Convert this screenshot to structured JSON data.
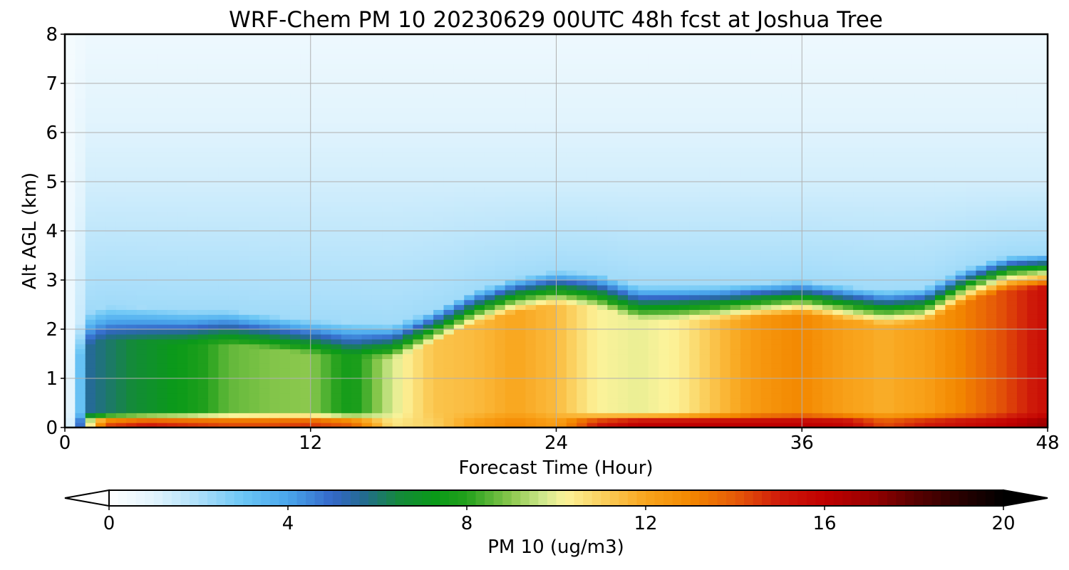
{
  "chart_data": {
    "type": "heatmap",
    "title": "WRF-Chem PM 10  20230629 00UTC 48h fcst at Joshua Tree",
    "xlabel": "Forecast Time (Hour)",
    "ylabel": "Alt AGL (km)",
    "xlim": [
      0,
      48
    ],
    "ylim": [
      0,
      8
    ],
    "x_ticks": [
      "0",
      "12",
      "24",
      "36",
      "48"
    ],
    "y_ticks": [
      "0",
      "1",
      "2",
      "3",
      "4",
      "5",
      "6",
      "7",
      "8"
    ],
    "grid": true,
    "colorbar": {
      "label": "PM 10  (ug/m3)",
      "ticks": [
        "0",
        "4",
        "8",
        "12",
        "16",
        "20"
      ],
      "range": [
        0,
        20
      ],
      "extend": "both",
      "orientation": "horizontal",
      "palette": [
        [
          0,
          "#ffffff"
        ],
        [
          1,
          "#e2f4fd"
        ],
        [
          2,
          "#aee0fa"
        ],
        [
          3,
          "#6bc6f5"
        ],
        [
          4,
          "#4aa6ec"
        ],
        [
          5,
          "#3467c8"
        ],
        [
          5.7,
          "#236b8f"
        ],
        [
          6.5,
          "#148a3a"
        ],
        [
          7.3,
          "#0a9a18"
        ],
        [
          8,
          "#22a01c"
        ],
        [
          9,
          "#8cc84e"
        ],
        [
          9.7,
          "#cfe88c"
        ],
        [
          10.2,
          "#fcf39a"
        ],
        [
          11,
          "#fbd160"
        ],
        [
          12,
          "#f9a51d"
        ],
        [
          13,
          "#f38800"
        ],
        [
          14,
          "#e65a08"
        ],
        [
          15,
          "#cf1a0a"
        ],
        [
          16,
          "#c00000"
        ],
        [
          17,
          "#9a0000"
        ],
        [
          18,
          "#5a0000"
        ],
        [
          19,
          "#2a0000"
        ],
        [
          20,
          "#000000"
        ]
      ]
    },
    "profile_times_hour": [
      0,
      1,
      2,
      4,
      6,
      8,
      10,
      12,
      14,
      16,
      18,
      20,
      22,
      24,
      26,
      28,
      30,
      32,
      34,
      36,
      38,
      40,
      42,
      44,
      46,
      48
    ],
    "surface_pm10": [
      3,
      9,
      14.2,
      15,
      14.6,
      14.2,
      14.2,
      14.5,
      13.8,
      10.5,
      11,
      12.2,
      13,
      12.2,
      15,
      16,
      16,
      16,
      16,
      16,
      15.8,
      14.2,
      15,
      15.5,
      16,
      17
    ],
    "lower_layer_pm10": [
      3,
      5.5,
      6,
      6.8,
      7.5,
      8.6,
      8.9,
      9,
      7.5,
      9.8,
      11.3,
      11.5,
      12,
      11.5,
      10.2,
      10,
      10.3,
      11.5,
      12.5,
      13,
      12.2,
      11.8,
      12.2,
      13.2,
      14.3,
      15.5
    ],
    "boundary_layer_top_km": [
      1.2,
      1.9,
      2.05,
      2.0,
      1.95,
      1.95,
      1.85,
      1.75,
      1.7,
      1.65,
      1.95,
      2.35,
      2.6,
      2.75,
      2.7,
      2.45,
      2.45,
      2.45,
      2.5,
      2.55,
      2.45,
      2.35,
      2.4,
      2.8,
      3.05,
      3.1
    ],
    "upper_air_pm10": 1.3,
    "top_air_pm10": 0.6,
    "mid_aloft_pm10": 2.2
  }
}
